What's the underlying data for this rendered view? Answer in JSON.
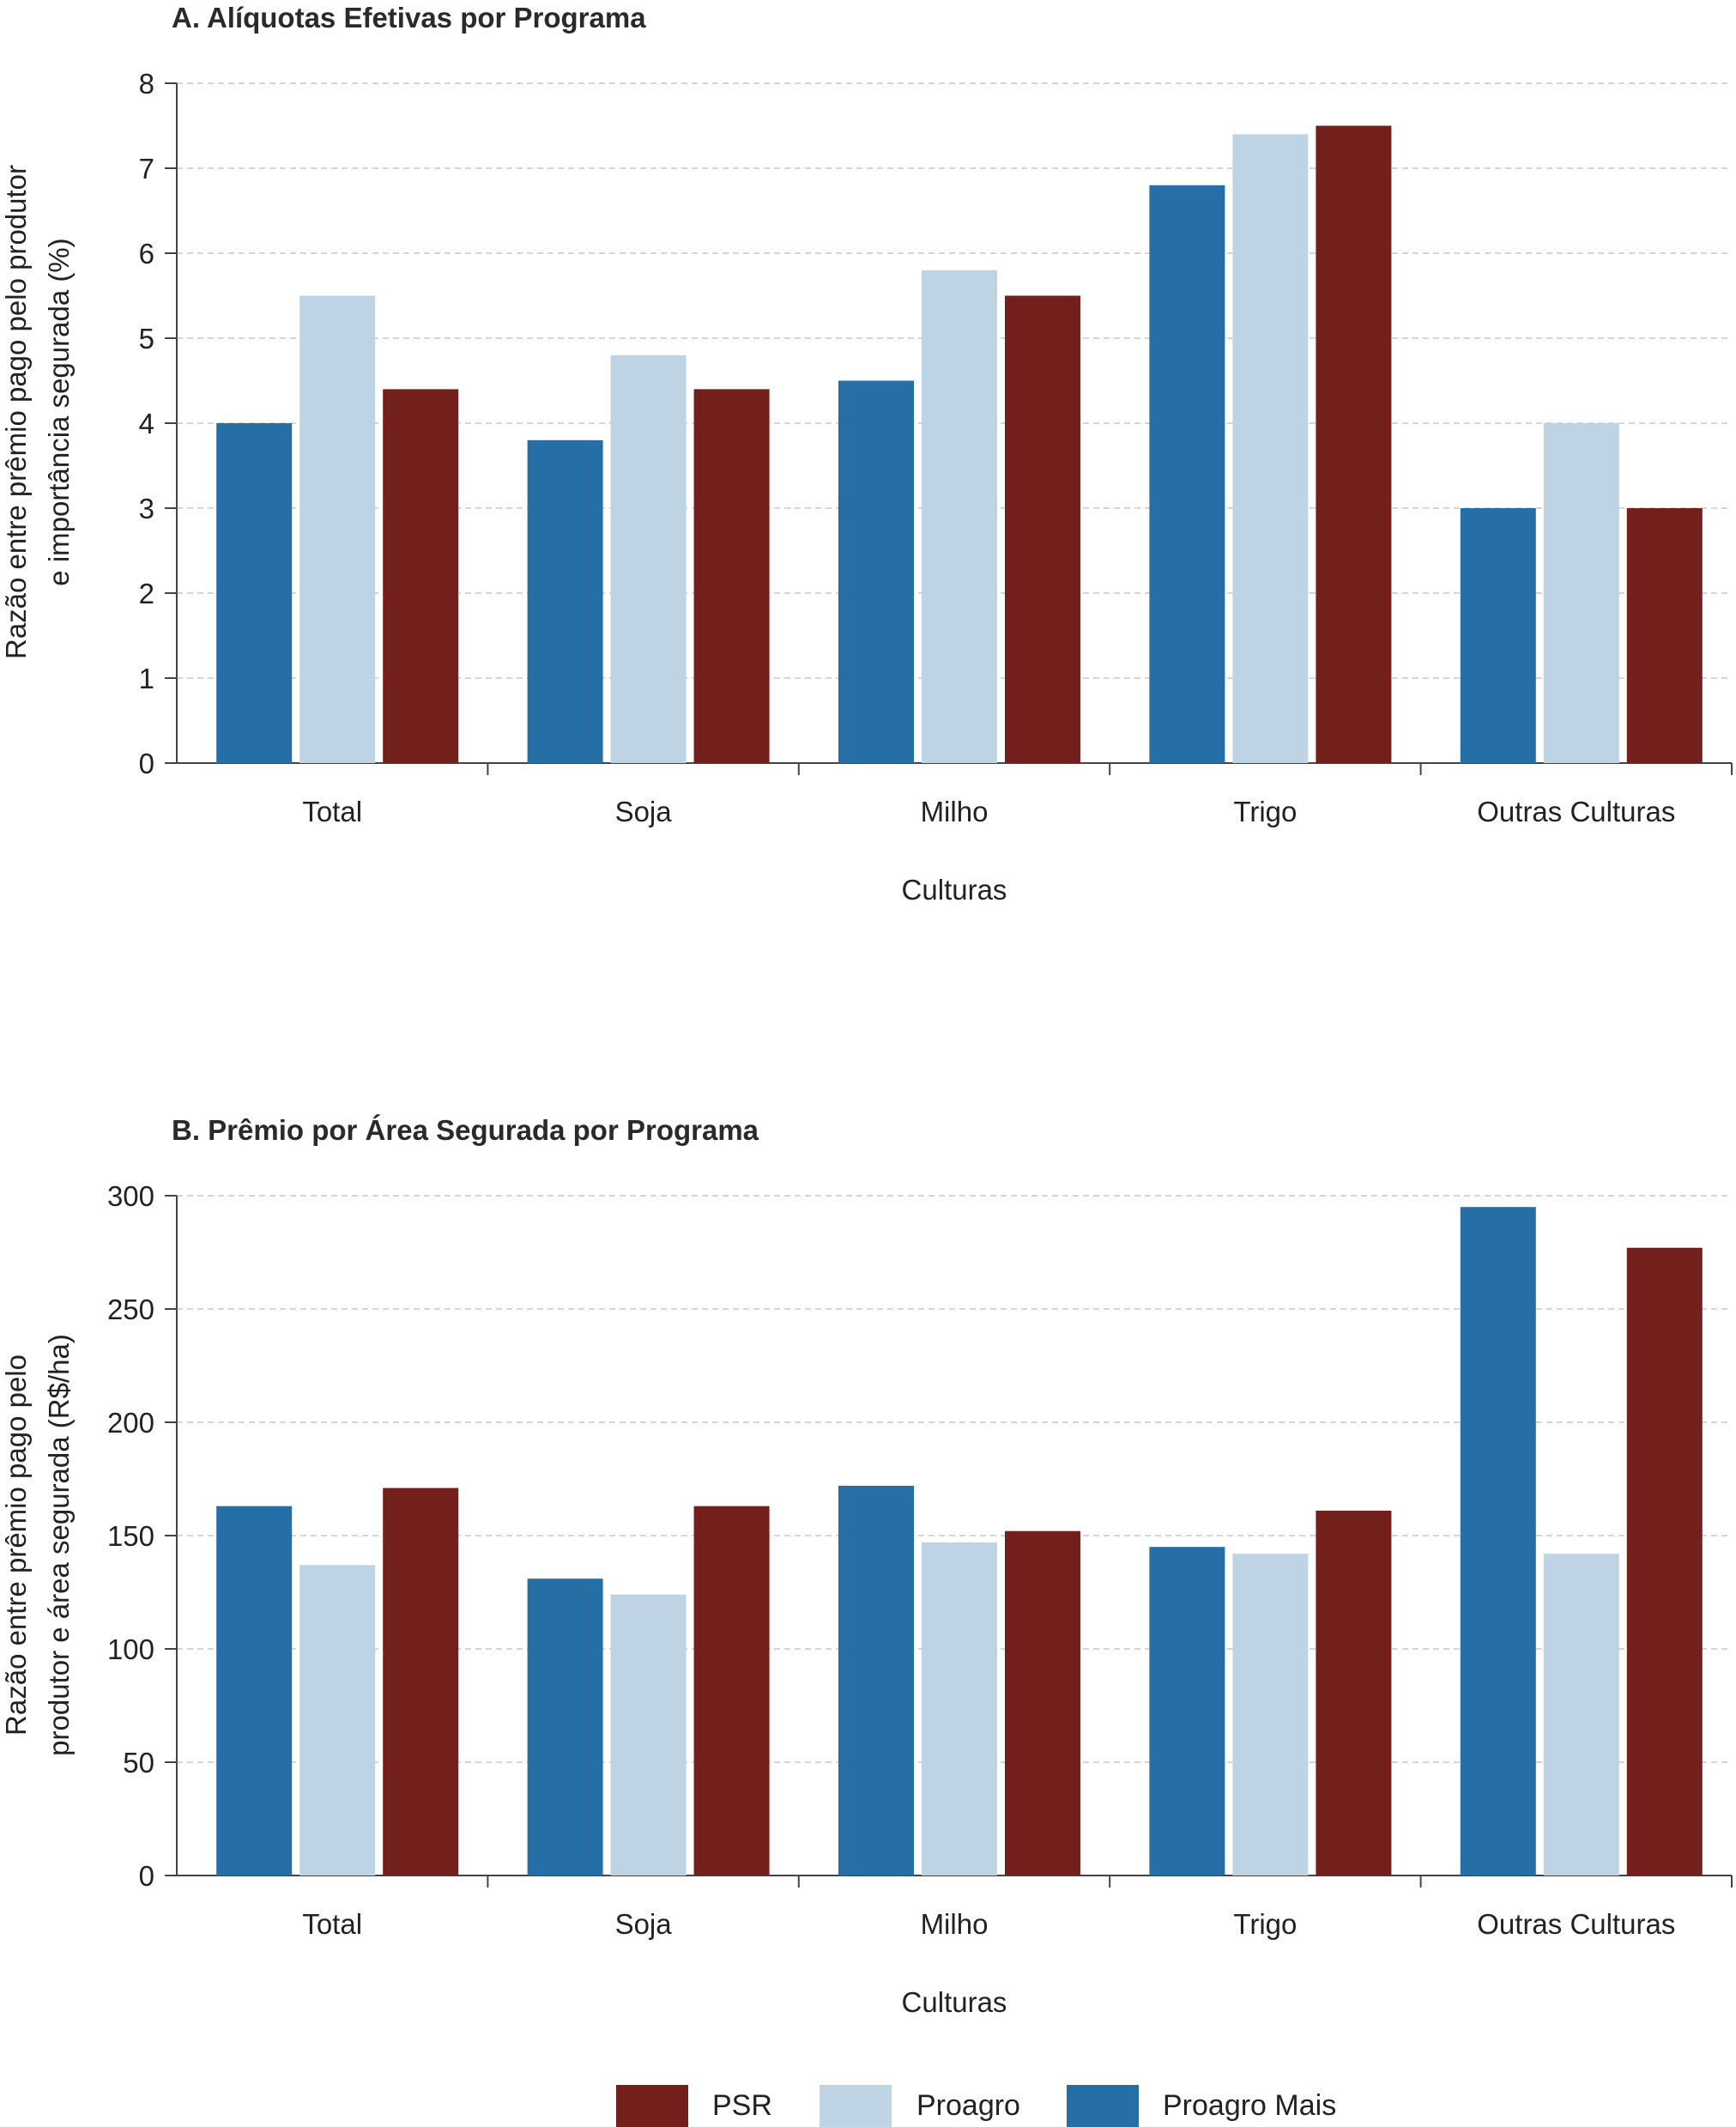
{
  "colors": {
    "PSR": "#731f1b",
    "Proagro": "#bed3e4",
    "Proagro Mais": "#256ea6"
  },
  "legend": {
    "items": [
      {
        "name": "PSR",
        "color": "#731f1b"
      },
      {
        "name": "Proagro",
        "color": "#bed3e4"
      },
      {
        "name": "Proagro Mais",
        "color": "#256ea6"
      }
    ],
    "placement": "bottom"
  },
  "chart_data": [
    {
      "type": "bar",
      "title": "A. Alíquotas Efetivas por Programa",
      "xlabel": "Culturas",
      "ylabel_lines": [
        "Razão entre prêmio pago pelo produtor",
        "e importância segurada (%)"
      ],
      "categories": [
        "Total",
        "Soja",
        "Milho",
        "Trigo",
        "Outras Culturas"
      ],
      "ylim": [
        0,
        8
      ],
      "yticks": [
        0,
        1,
        2,
        3,
        4,
        5,
        6,
        7,
        8
      ],
      "grid": true,
      "series": [
        {
          "name": "Proagro Mais",
          "values": [
            4.0,
            3.8,
            4.5,
            6.8,
            3.0
          ]
        },
        {
          "name": "Proagro",
          "values": [
            5.5,
            4.8,
            5.8,
            7.4,
            4.0
          ]
        },
        {
          "name": "PSR",
          "values": [
            4.4,
            4.4,
            5.5,
            7.5,
            3.0
          ]
        }
      ]
    },
    {
      "type": "bar",
      "title": "B. Prêmio por Área Segurada por Programa",
      "xlabel": "Culturas",
      "ylabel_lines": [
        "Razão entre prêmio pago pelo",
        "produtor e área segurada (R$/ha)"
      ],
      "categories": [
        "Total",
        "Soja",
        "Milho",
        "Trigo",
        "Outras Culturas"
      ],
      "ylim": [
        0,
        300
      ],
      "yticks": [
        0,
        50,
        100,
        150,
        200,
        250,
        300
      ],
      "grid": true,
      "series": [
        {
          "name": "Proagro Mais",
          "values": [
            163,
            131,
            172,
            145,
            295
          ]
        },
        {
          "name": "Proagro",
          "values": [
            137,
            124,
            147,
            142,
            142
          ]
        },
        {
          "name": "PSR",
          "values": [
            171,
            163,
            152,
            161,
            277
          ]
        }
      ]
    }
  ]
}
